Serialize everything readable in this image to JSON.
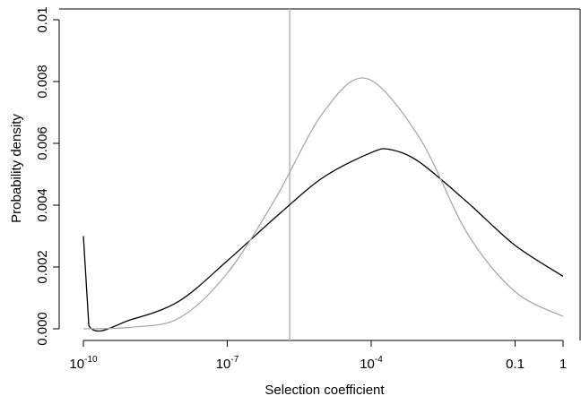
{
  "chart_data": {
    "type": "line",
    "xlabel": "Selection coefficient",
    "ylabel": "Probability density",
    "x_scale": "log10",
    "xlim": [
      1e-10,
      1
    ],
    "ylim": [
      0,
      0.01
    ],
    "x_ticks": [
      {
        "value": 1e-10,
        "base": "10",
        "exp": "-10"
      },
      {
        "value": 1e-07,
        "base": "10",
        "exp": "-7"
      },
      {
        "value": 0.0001,
        "base": "10",
        "exp": "-4"
      },
      {
        "value": 0.1,
        "base": "0.1",
        "exp": ""
      },
      {
        "value": 1,
        "base": "1",
        "exp": ""
      }
    ],
    "y_ticks": [
      "0.000",
      "0.002",
      "0.004",
      "0.006",
      "0.008",
      "0.01"
    ],
    "vertical_line": {
      "x": 2e-06,
      "color": "#bbbbbb"
    },
    "series": [
      {
        "color": "#000000",
        "points": [
          [
            1e-10,
            0.003
          ],
          [
            1.3e-10,
            0.0001
          ],
          [
            1e-09,
            0.0003
          ],
          [
            1e-08,
            0.0009
          ],
          [
            1e-07,
            0.0022
          ],
          [
            1e-06,
            0.0036
          ],
          [
            1e-05,
            0.0049
          ],
          [
            0.0001,
            0.0057
          ],
          [
            0.00025,
            0.0058
          ],
          [
            0.001,
            0.0054
          ],
          [
            0.01,
            0.0041
          ],
          [
            0.1,
            0.0027
          ],
          [
            1,
            0.0017
          ]
        ]
      },
      {
        "color": "#a9a9a9",
        "points": [
          [
            1e-10,
            0.0
          ],
          [
            1e-09,
            5e-05
          ],
          [
            1e-08,
            0.00035
          ],
          [
            1e-07,
            0.0018
          ],
          [
            1e-06,
            0.0042
          ],
          [
            1e-05,
            0.007
          ],
          [
            8e-05,
            0.0081
          ],
          [
            0.001,
            0.0062
          ],
          [
            0.01,
            0.0031
          ],
          [
            0.1,
            0.0012
          ],
          [
            1,
            0.0004
          ]
        ]
      }
    ],
    "grid": false,
    "legend": "none"
  }
}
